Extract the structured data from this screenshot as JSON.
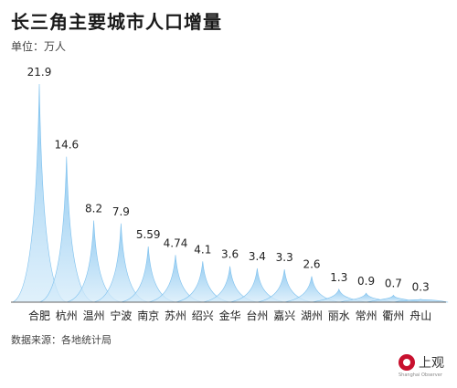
{
  "title": "长三角主要城市人口增量",
  "unit_label": "单位：万人",
  "source": "数据来源：各地统计局",
  "logo": {
    "text": "上观",
    "sub": "Shanghai Observer"
  },
  "colors": {
    "fill_top": "#7cc0ee",
    "fill_bottom": "#d6ecfa",
    "axis": "#666666"
  },
  "chart_data": {
    "type": "area",
    "title": "长三角主要城市人口增量",
    "ylabel": "单位：万人",
    "categories": [
      "合肥",
      "杭州",
      "温州",
      "宁波",
      "南京",
      "苏州",
      "绍兴",
      "金华",
      "台州",
      "嘉兴",
      "湖州",
      "丽水",
      "常州",
      "衢州",
      "舟山"
    ],
    "labels": [
      "21.9",
      "14.6",
      "8.2",
      "7.9",
      "5.59",
      "4.74",
      "4.1",
      "3.6",
      "3.4",
      "3.3",
      "2.6",
      "1.3",
      "0.9",
      "0.7",
      "0.3"
    ],
    "values": [
      21.9,
      14.6,
      8.2,
      7.9,
      5.59,
      4.74,
      4.1,
      3.6,
      3.4,
      3.3,
      2.6,
      1.3,
      0.9,
      0.7,
      0.3
    ],
    "ylim": [
      0,
      21.9
    ]
  }
}
